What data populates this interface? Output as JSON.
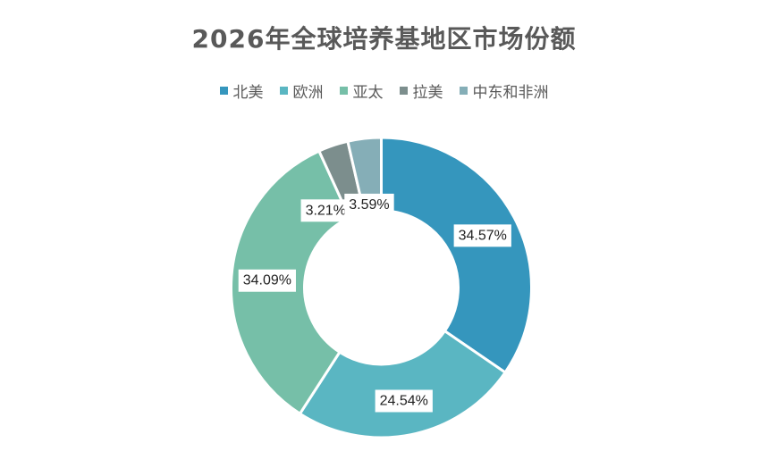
{
  "chart_data": {
    "type": "pie",
    "variant": "donut",
    "title": "2026年全球培养基地区市场份额",
    "legend_position": "top",
    "categories": [
      "北美",
      "欧洲",
      "亚太",
      "拉美",
      "中东和非洲"
    ],
    "values": [
      34.57,
      24.54,
      34.09,
      3.21,
      3.59
    ],
    "value_labels": [
      "34.57%",
      "24.54%",
      "34.09%",
      "3.21%",
      "3.59%"
    ],
    "colors": [
      "#3596BD",
      "#5AB6C2",
      "#76BFA8",
      "#7C8E8D",
      "#85AEB7"
    ]
  }
}
